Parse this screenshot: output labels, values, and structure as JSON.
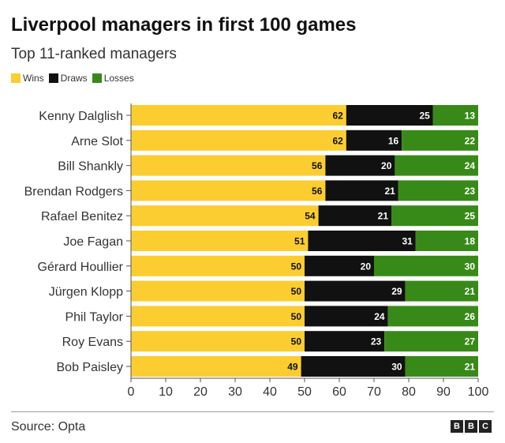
{
  "header": {
    "title": "Liverpool managers in first 100 games",
    "subtitle": "Top 11-ranked managers"
  },
  "legend": [
    {
      "label": "Wins",
      "color": "#fccd30"
    },
    {
      "label": "Draws",
      "color": "#111111"
    },
    {
      "label": "Losses",
      "color": "#388a18"
    }
  ],
  "chart_data": {
    "type": "bar",
    "orientation": "horizontal",
    "stacked": true,
    "title": "Liverpool managers in first 100 games",
    "subtitle": "Top 11-ranked managers",
    "categories": [
      "Kenny Dalglish",
      "Arne Slot",
      "Bill Shankly",
      "Brendan Rodgers",
      "Rafael Benitez",
      "Joe Fagan",
      "Gérard Houllier",
      "Jürgen Klopp",
      "Phil Taylor",
      "Roy Evans",
      "Bob Paisley"
    ],
    "series": [
      {
        "name": "Wins",
        "color": "#fccd30",
        "values": [
          62,
          62,
          56,
          56,
          54,
          51,
          50,
          50,
          50,
          50,
          49
        ]
      },
      {
        "name": "Draws",
        "color": "#111111",
        "values": [
          25,
          16,
          20,
          21,
          21,
          31,
          20,
          29,
          24,
          23,
          30
        ]
      },
      {
        "name": "Losses",
        "color": "#388a18",
        "values": [
          13,
          22,
          24,
          23,
          25,
          18,
          30,
          21,
          26,
          27,
          21
        ]
      }
    ],
    "xlim": [
      0,
      100
    ],
    "xticks": [
      0,
      10,
      20,
      30,
      40,
      50,
      60,
      70,
      80,
      90,
      100
    ],
    "xlabel": "",
    "ylabel": "",
    "legend_position": "top-left",
    "grid": false
  },
  "footer": {
    "source": "Source: Opta",
    "logo_letters": [
      "B",
      "B",
      "C"
    ]
  }
}
